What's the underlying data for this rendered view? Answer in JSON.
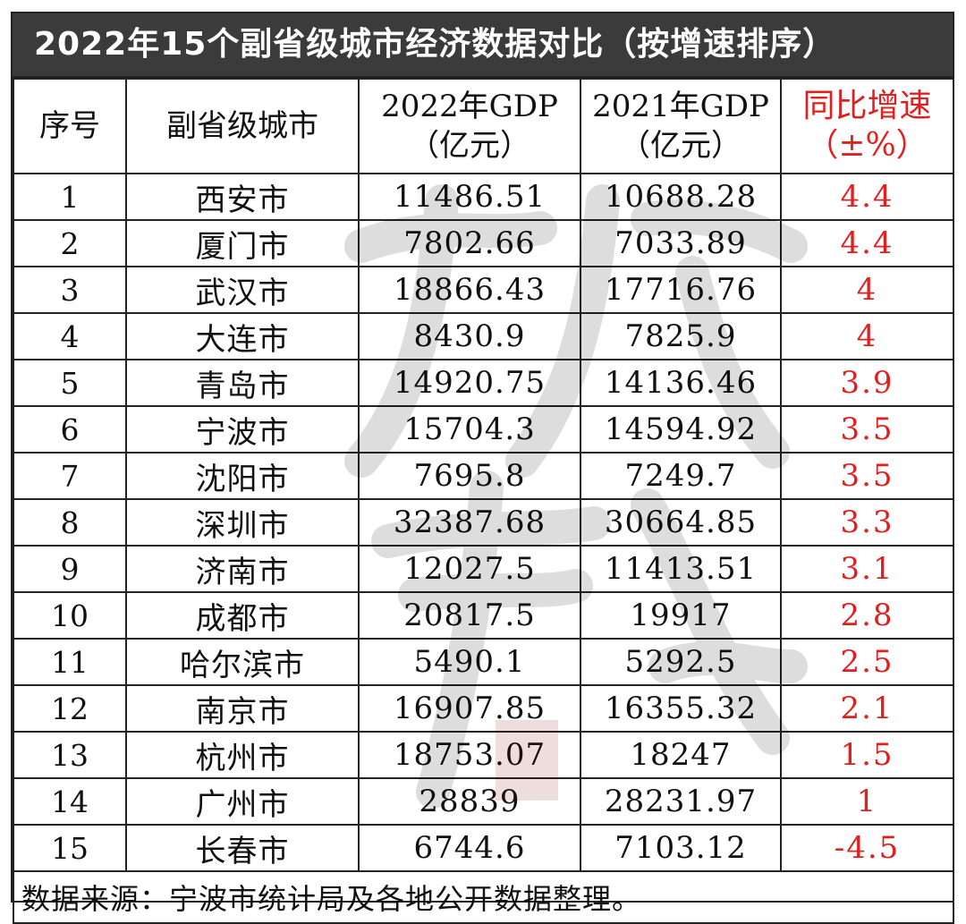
{
  "title": "2022年15个副省级城市经济数据对比（按增速排序）",
  "headers": {
    "index": "序号",
    "city": "副省级城市",
    "gdp2022_l1": "2022年GDP",
    "gdp2022_l2": "（亿元）",
    "gdp2021_l1": "2021年GDP",
    "gdp2021_l2": "（亿元）",
    "growth_l1": "同比增速",
    "growth_l2": "（±%）"
  },
  "rows": [
    {
      "index": "1",
      "city": "西安市",
      "gdp2022": "11486.51",
      "gdp2021": "10688.28",
      "growth": "4.4"
    },
    {
      "index": "2",
      "city": "厦门市",
      "gdp2022": "7802.66",
      "gdp2021": "7033.89",
      "growth": "4.4"
    },
    {
      "index": "3",
      "city": "武汉市",
      "gdp2022": "18866.43",
      "gdp2021": "17716.76",
      "growth": "4"
    },
    {
      "index": "4",
      "city": "大连市",
      "gdp2022": "8430.9",
      "gdp2021": "7825.9",
      "growth": "4"
    },
    {
      "index": "5",
      "city": "青岛市",
      "gdp2022": "14920.75",
      "gdp2021": "14136.46",
      "growth": "3.9"
    },
    {
      "index": "6",
      "city": "宁波市",
      "gdp2022": "15704.3",
      "gdp2021": "14594.92",
      "growth": "3.5"
    },
    {
      "index": "7",
      "city": "沈阳市",
      "gdp2022": "7695.8",
      "gdp2021": "7249.7",
      "growth": "3.5"
    },
    {
      "index": "8",
      "city": "深圳市",
      "gdp2022": "32387.68",
      "gdp2021": "30664.85",
      "growth": "3.3"
    },
    {
      "index": "9",
      "city": "济南市",
      "gdp2022": "12027.5",
      "gdp2021": "11413.51",
      "growth": "3.1"
    },
    {
      "index": "10",
      "city": "成都市",
      "gdp2022": "20817.5",
      "gdp2021": "19917",
      "growth": "2.8"
    },
    {
      "index": "11",
      "city": "哈尔滨市",
      "gdp2022": "5490.1",
      "gdp2021": "5292.5",
      "growth": "2.5"
    },
    {
      "index": "12",
      "city": "南京市",
      "gdp2022": "16907.85",
      "gdp2021": "16355.32",
      "growth": "2.1"
    },
    {
      "index": "13",
      "city": "杭州市",
      "gdp2022": "18753.07",
      "gdp2021": "18247",
      "growth": "1.5"
    },
    {
      "index": "14",
      "city": "广州市",
      "gdp2022": "28839",
      "gdp2021": "28231.97",
      "growth": "1"
    },
    {
      "index": "15",
      "city": "长春市",
      "gdp2022": "6744.6",
      "gdp2021": "7103.12",
      "growth": "-4.5"
    }
  ],
  "footer": "数据来源：宁波市统计局及各地公开数据整理。",
  "colors": {
    "title_bg": "#3b3b3b",
    "growth_red": "#e0201f",
    "border": "#222222"
  }
}
